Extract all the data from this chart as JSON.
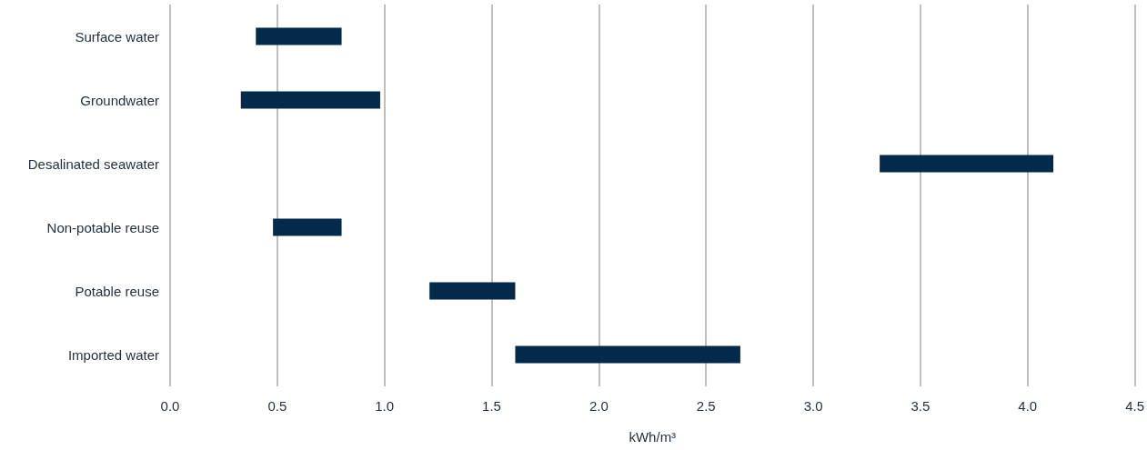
{
  "chart_data": {
    "type": "bar",
    "orientation": "horizontal",
    "categories": [
      "Surface water",
      "Groundwater",
      "Desalinated seawater",
      "Non-potable reuse",
      "Potable reuse",
      "Imported water"
    ],
    "base": [
      0.4,
      0.33,
      3.31,
      0.48,
      1.21,
      1.61
    ],
    "values": [
      0.4,
      0.65,
      0.81,
      0.32,
      0.4,
      1.05
    ],
    "color": "#022a4a",
    "xlim": [
      0,
      4.5
    ],
    "xticks": [
      {
        "value": 0,
        "label": "0.0"
      },
      0.5,
      {
        "value": 1,
        "label": "1.0"
      },
      1.5,
      {
        "value": 2,
        "label": "2.0"
      },
      2.5,
      {
        "value": 3,
        "label": "3.0"
      },
      3.5,
      {
        "value": 4,
        "label": "4.0"
      },
      4.5
    ],
    "xlabel": "kWh/m³",
    "grid": "x"
  }
}
